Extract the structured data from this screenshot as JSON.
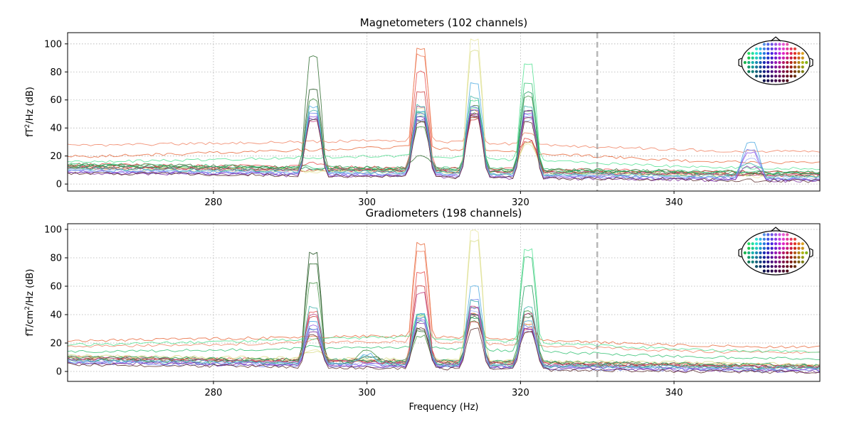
{
  "chart_data": [
    {
      "type": "line",
      "title": "Magnetometers (102 channels)",
      "ylabel_main": "fT",
      "ylabel_sup": "2",
      "ylabel_tail": "/Hz (dB)",
      "xlabel": "",
      "xlim": [
        261,
        359
      ],
      "ylim": [
        -5,
        108
      ],
      "xticks": [
        280,
        300,
        320,
        340
      ],
      "yticks": [
        0,
        20,
        40,
        60,
        80,
        100
      ],
      "grid": true,
      "vline_x": 330,
      "sensor_layout_inset": "top-right",
      "peak_frequencies_hz": [
        293,
        300,
        307,
        314,
        321,
        350
      ],
      "series": [
        {
          "color": "#2e6b2e",
          "baseline": 14,
          "peaks": [
            91,
            5,
            20,
            56,
            52,
            8
          ]
        },
        {
          "color": "#1f4f1f",
          "baseline": 12,
          "peaks": [
            68,
            4,
            45,
            50,
            47,
            7
          ]
        },
        {
          "color": "#3f8f3f",
          "baseline": 13,
          "peaks": [
            60,
            3,
            40,
            48,
            62,
            6
          ]
        },
        {
          "color": "#e8673a",
          "baseline": 20,
          "peaks": [
            22,
            6,
            97,
            52,
            30,
            5
          ],
          "slope": 0.08
        },
        {
          "color": "#f08060",
          "baseline": 28,
          "peaks": [
            18,
            5,
            92,
            50,
            36,
            4
          ],
          "slope": 0.05
        },
        {
          "color": "#e84545",
          "baseline": 14,
          "peaks": [
            15,
            12,
            80,
            48,
            32,
            6
          ]
        },
        {
          "color": "#c93030",
          "baseline": 12,
          "peaks": [
            12,
            8,
            65,
            46,
            30,
            5
          ]
        },
        {
          "color": "#e8e6a0",
          "baseline": 11,
          "peaks": [
            10,
            4,
            54,
            103,
            28,
            5
          ]
        },
        {
          "color": "#d8dc8a",
          "baseline": 12,
          "peaks": [
            12,
            4,
            50,
            95,
            30,
            5
          ]
        },
        {
          "color": "#50e090",
          "baseline": 16,
          "peaks": [
            14,
            4,
            52,
            60,
            85,
            10
          ],
          "slope": 0.06
        },
        {
          "color": "#2fbf70",
          "baseline": 14,
          "peaks": [
            13,
            3,
            50,
            55,
            72,
            8
          ]
        },
        {
          "color": "#1c9a5a",
          "baseline": 13,
          "peaks": [
            12,
            3,
            48,
            52,
            65,
            6
          ]
        },
        {
          "color": "#4aa8e0",
          "baseline": 10,
          "peaks": [
            55,
            4,
            52,
            72,
            50,
            30
          ]
        },
        {
          "color": "#6a7cf0",
          "baseline": 9,
          "peaks": [
            50,
            3,
            50,
            55,
            48,
            25
          ]
        },
        {
          "color": "#8a4ae0",
          "baseline": 9,
          "peaks": [
            48,
            3,
            48,
            52,
            50,
            22
          ]
        },
        {
          "color": "#7a2a9a",
          "baseline": 8,
          "peaks": [
            47,
            3,
            46,
            50,
            52,
            12
          ]
        },
        {
          "color": "#a0b0f8",
          "baseline": 10,
          "peaks": [
            46,
            3,
            45,
            48,
            46,
            18
          ]
        },
        {
          "color": "#c04080",
          "baseline": 12,
          "peaks": [
            45,
            4,
            55,
            48,
            48,
            10
          ]
        },
        {
          "color": "#3ab0a8",
          "baseline": 11,
          "peaks": [
            52,
            3,
            56,
            62,
            55,
            14
          ]
        },
        {
          "color": "#5a2a2a",
          "baseline": 8,
          "peaks": [
            46,
            3,
            44,
            48,
            44,
            8
          ]
        }
      ]
    },
    {
      "type": "line",
      "title": "Gradiometers (198 channels)",
      "ylabel_main": "fT/cm",
      "ylabel_sup": "2",
      "ylabel_tail": "/Hz (dB)",
      "xlabel": "Frequency (Hz)",
      "xlim": [
        261,
        359
      ],
      "ylim": [
        -7,
        104
      ],
      "xticks": [
        280,
        300,
        320,
        340
      ],
      "yticks": [
        0,
        20,
        40,
        60,
        80,
        100
      ],
      "grid": true,
      "vline_x": 330,
      "sensor_layout_inset": "top-right",
      "peak_frequencies_hz": [
        293,
        300,
        307,
        314,
        321,
        350
      ],
      "series": [
        {
          "color": "#1f4f1f",
          "baseline": 9,
          "peaks": [
            83,
            10,
            30,
            40,
            40,
            4
          ]
        },
        {
          "color": "#2e6b2e",
          "baseline": 10,
          "peaks": [
            75,
            8,
            28,
            38,
            38,
            4
          ]
        },
        {
          "color": "#3f8f3f",
          "baseline": 8,
          "peaks": [
            62,
            14,
            25,
            35,
            42,
            3
          ]
        },
        {
          "color": "#e8673a",
          "baseline": 22,
          "peaks": [
            25,
            8,
            90,
            40,
            34,
            3
          ],
          "slope": 0.05
        },
        {
          "color": "#f08060",
          "baseline": 18,
          "peaks": [
            22,
            6,
            85,
            45,
            30,
            3
          ],
          "slope": 0.05
        },
        {
          "color": "#e84545",
          "baseline": 10,
          "peaks": [
            42,
            8,
            70,
            40,
            30,
            3
          ]
        },
        {
          "color": "#c93030",
          "baseline": 9,
          "peaks": [
            38,
            6,
            60,
            35,
            28,
            3
          ]
        },
        {
          "color": "#e8e6a0",
          "baseline": 10,
          "peaks": [
            15,
            4,
            40,
            99,
            35,
            3
          ]
        },
        {
          "color": "#d8dc8a",
          "baseline": 11,
          "peaks": [
            14,
            4,
            38,
            92,
            32,
            3
          ]
        },
        {
          "color": "#50e090",
          "baseline": 19,
          "peaks": [
            20,
            5,
            40,
            44,
            86,
            4
          ],
          "slope": 0.07
        },
        {
          "color": "#2fbf70",
          "baseline": 14,
          "peaks": [
            18,
            4,
            38,
            40,
            80,
            4
          ],
          "slope": 0.05
        },
        {
          "color": "#1c9a5a",
          "baseline": 10,
          "peaks": [
            30,
            4,
            35,
            38,
            60,
            4
          ]
        },
        {
          "color": "#4aa8e0",
          "baseline": 7,
          "peaks": [
            35,
            12,
            40,
            60,
            35,
            3
          ]
        },
        {
          "color": "#6a7cf0",
          "baseline": 6,
          "peaks": [
            30,
            4,
            38,
            50,
            32,
            3
          ]
        },
        {
          "color": "#8a4ae0",
          "baseline": 7,
          "peaks": [
            32,
            4,
            36,
            45,
            30,
            3
          ]
        },
        {
          "color": "#7a2a9a",
          "baseline": 6,
          "peaks": [
            28,
            3,
            34,
            40,
            30,
            3
          ]
        },
        {
          "color": "#a0b0f8",
          "baseline": 8,
          "peaks": [
            30,
            3,
            35,
            42,
            28,
            3
          ]
        },
        {
          "color": "#c04080",
          "baseline": 9,
          "peaks": [
            40,
            4,
            55,
            45,
            40,
            3
          ]
        },
        {
          "color": "#3ab0a8",
          "baseline": 8,
          "peaks": [
            45,
            10,
            40,
            50,
            45,
            3
          ]
        },
        {
          "color": "#5a2a2a",
          "baseline": 5,
          "peaks": [
            25,
            3,
            30,
            30,
            28,
            2
          ]
        }
      ]
    }
  ]
}
